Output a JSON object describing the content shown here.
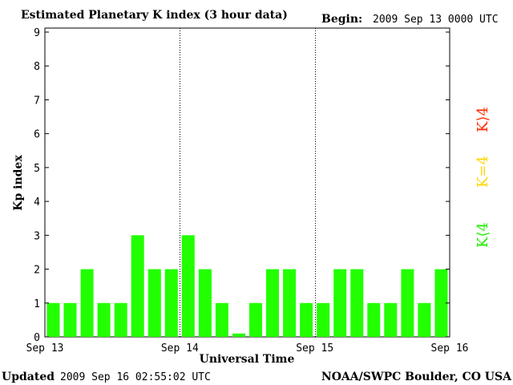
{
  "header": {
    "title": "Estimated Planetary K index (3 hour data)",
    "begin_label": "Begin:",
    "begin_value": "2009 Sep 13 0000 UTC"
  },
  "footer": {
    "updated_label": "Updated",
    "updated_value": "2009 Sep 16 02:55:02 UTC",
    "source": "NOAA/SWPC Boulder, CO USA"
  },
  "legend": {
    "high": {
      "label": "K⟩4",
      "color": "#ff2a00"
    },
    "equal": {
      "label": "K=4",
      "color": "#ffd700"
    },
    "low": {
      "label": "K⟨4",
      "color": "#22ee00"
    }
  },
  "chart_data": {
    "type": "bar",
    "title": "Estimated Planetary K index (3 hour data)",
    "xlabel": "Universal Time",
    "ylabel": "Kp index",
    "ylim": [
      0,
      9
    ],
    "yticks": [
      0,
      1,
      2,
      3,
      4,
      5,
      6,
      7,
      8,
      9
    ],
    "xtick_labels": [
      "Sep 13",
      "Sep 14",
      "Sep 15",
      "Sep 16"
    ],
    "day_separators": true,
    "bar_color": "#22ff00",
    "values": [
      1,
      1,
      2,
      1,
      1,
      3,
      2,
      2,
      3,
      2,
      1,
      0.1,
      1,
      2,
      2,
      1,
      1,
      2,
      2,
      1,
      1,
      2,
      1,
      2
    ]
  }
}
